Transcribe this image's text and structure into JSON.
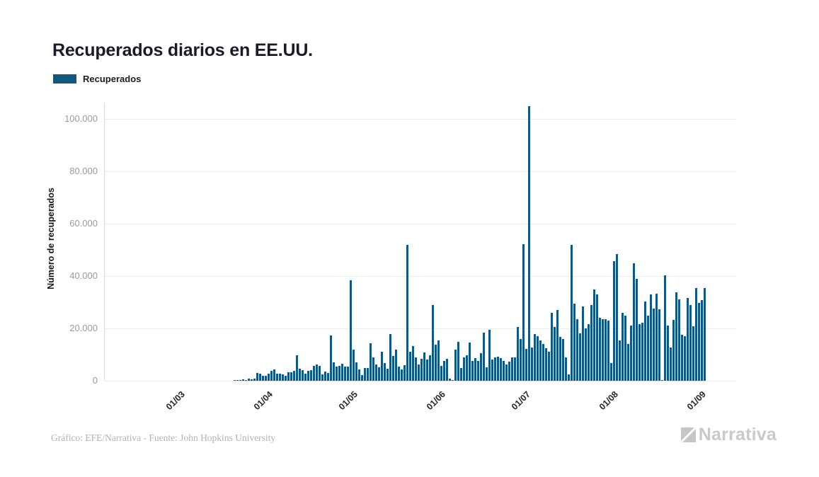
{
  "title": "Recuperados diarios en EE.UU.",
  "legend": {
    "label": "Recuperados",
    "color": "#12577d"
  },
  "y_axis": {
    "title": "Número de recuperados",
    "ticks": [
      "0",
      "20.000",
      "40.000",
      "60.000",
      "80.000",
      "100.000"
    ],
    "tick_values": [
      0,
      20000,
      40000,
      60000,
      80000,
      100000
    ]
  },
  "x_axis": {
    "ticks": [
      "01/03",
      "01/04",
      "01/05",
      "01/06",
      "01/07",
      "01/08",
      "01/09"
    ]
  },
  "footer": {
    "text": "Gráfico: EFE/Narrativa - Fuente: John Hopkins University"
  },
  "logo": {
    "text": "Narrativa"
  },
  "chart_data": {
    "type": "bar",
    "title": "Recuperados diarios en EE.UU.",
    "xlabel": "",
    "ylabel": "Número de recuperados",
    "ylim": [
      0,
      110000
    ],
    "grid": "horizontal",
    "legend_position": "top-left",
    "x_tick_labels": [
      "01/03",
      "01/04",
      "01/05",
      "01/06",
      "01/07",
      "01/08",
      "01/09"
    ],
    "series": [
      {
        "name": "Recuperados",
        "color": "#12577d",
        "x": [
          "23/03",
          "24/03",
          "25/03",
          "26/03",
          "27/03",
          "28/03",
          "29/03",
          "30/03",
          "31/03",
          "01/04",
          "02/04",
          "03/04",
          "04/04",
          "05/04",
          "06/04",
          "07/04",
          "08/04",
          "09/04",
          "10/04",
          "11/04",
          "12/04",
          "13/04",
          "14/04",
          "15/04",
          "16/04",
          "17/04",
          "18/04",
          "19/04",
          "20/04",
          "21/04",
          "22/04",
          "23/04",
          "24/04",
          "25/04",
          "26/04",
          "27/04",
          "28/04",
          "29/04",
          "30/04",
          "01/05",
          "02/05",
          "03/05",
          "04/05",
          "05/05",
          "06/05",
          "07/05",
          "08/05",
          "09/05",
          "10/05",
          "11/05",
          "12/05",
          "13/05",
          "14/05",
          "15/05",
          "16/05",
          "17/05",
          "18/05",
          "19/05",
          "20/05",
          "21/05",
          "22/05",
          "23/05",
          "24/05",
          "25/05",
          "26/05",
          "27/05",
          "28/05",
          "29/05",
          "30/05",
          "31/05",
          "01/06",
          "02/06",
          "03/06",
          "04/06",
          "05/06",
          "06/06",
          "07/06",
          "08/06",
          "09/06",
          "10/06",
          "11/06",
          "12/06",
          "13/06",
          "14/06",
          "15/06",
          "16/06",
          "17/06",
          "18/06",
          "19/06",
          "20/06",
          "21/06",
          "22/06",
          "23/06",
          "24/06",
          "25/06",
          "26/06",
          "27/06",
          "28/06",
          "29/06",
          "30/06",
          "01/07",
          "02/07",
          "03/07",
          "04/07",
          "05/07",
          "06/07",
          "07/07",
          "08/07",
          "09/07",
          "10/07",
          "11/07",
          "12/07",
          "13/07",
          "14/07",
          "15/07",
          "16/07",
          "17/07",
          "18/07",
          "19/07",
          "20/07",
          "21/07",
          "22/07",
          "23/07",
          "24/07",
          "25/07",
          "26/07",
          "27/07",
          "28/07",
          "29/07",
          "30/07",
          "31/07",
          "01/08",
          "02/08",
          "03/08",
          "04/08",
          "05/08",
          "06/08",
          "07/08",
          "08/08",
          "09/08",
          "10/08",
          "11/08",
          "12/08",
          "13/08",
          "14/08",
          "15/08",
          "16/08",
          "17/08",
          "18/08",
          "19/08",
          "20/08",
          "21/08",
          "22/08",
          "23/08",
          "24/08",
          "25/08",
          "26/08",
          "27/08",
          "28/08",
          "29/08",
          "30/08",
          "31/08",
          "01/09",
          "02/09",
          "03/09",
          "04/09",
          "05/09"
        ],
        "values": [
          350,
          200,
          150,
          450,
          300,
          700,
          550,
          900,
          2900,
          2700,
          2000,
          1800,
          2700,
          3800,
          4400,
          2700,
          2600,
          2300,
          2000,
          3300,
          3300,
          3700,
          9600,
          4600,
          4100,
          2700,
          3700,
          4100,
          5600,
          6300,
          5600,
          2300,
          3400,
          3000,
          17400,
          7000,
          5400,
          5600,
          6500,
          5500,
          5400,
          38400,
          11800,
          7100,
          4400,
          2200,
          4900,
          5000,
          14200,
          9000,
          6300,
          5200,
          11000,
          6800,
          4600,
          17800,
          9500,
          11800,
          5500,
          4400,
          6000,
          52000,
          11200,
          13200,
          9000,
          6300,
          8500,
          10900,
          8000,
          9800,
          28800,
          13700,
          15300,
          5800,
          7700,
          8500,
          800,
          300,
          11800,
          15000,
          4900,
          9000,
          9600,
          14500,
          7700,
          8600,
          7500,
          10600,
          18400,
          5100,
          19500,
          8100,
          8800,
          9300,
          8600,
          7700,
          6300,
          7200,
          8800,
          9000,
          20500,
          15900,
          52200,
          12200,
          104800,
          12700,
          17800,
          17000,
          15400,
          14000,
          12400,
          11000,
          26000,
          20600,
          27100,
          16800,
          15900,
          9000,
          2500,
          51800,
          29400,
          23400,
          18200,
          28400,
          20000,
          21500,
          29000,
          35000,
          33000,
          24000,
          23500,
          23400,
          23000,
          6800,
          45600,
          48300,
          15400,
          26000,
          25000,
          14000,
          21000,
          44900,
          38900,
          21600,
          22200,
          30400,
          25000,
          33100,
          27700,
          33300,
          27300,
          400,
          40400,
          21000,
          12700,
          23200,
          33900,
          31000,
          17500,
          17000,
          31500,
          29000,
          20900,
          35300,
          29600,
          30900,
          35300
        ]
      }
    ]
  }
}
